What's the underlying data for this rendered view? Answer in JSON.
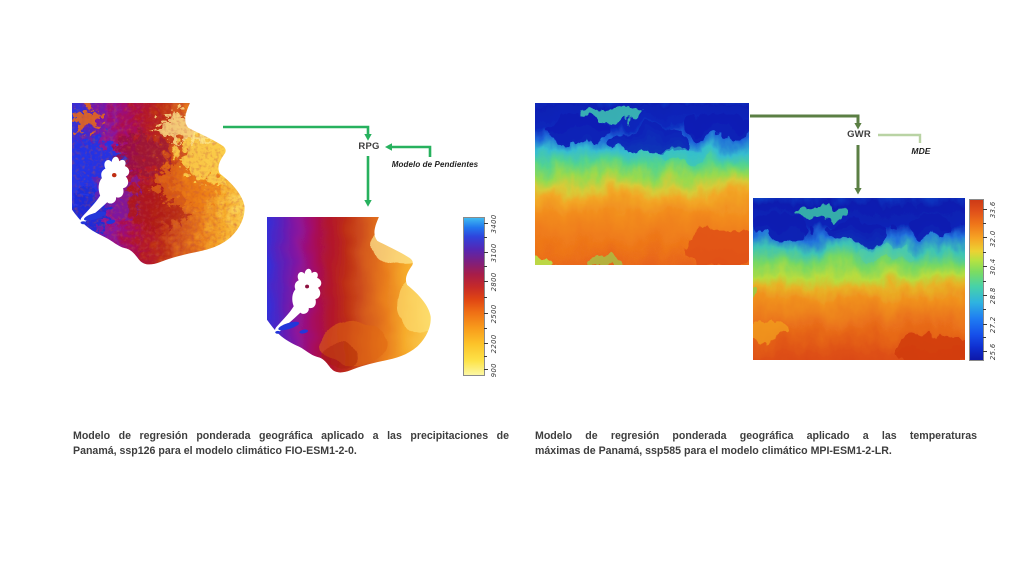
{
  "figure": {
    "background": "#ffffff",
    "accent_colors": {
      "left_connector_green": "#27b15e",
      "right_connector_green": "#5b7f44",
      "right_connector_light_green": "#b9d3a4"
    },
    "left_panel": {
      "node_label": "RPG",
      "input_label": "Modelo de Pendientes",
      "colorbar": {
        "labels": [
          "900",
          "2200",
          "2500",
          "2800",
          "3100",
          "3400"
        ],
        "positions_pct": [
          3,
          20,
          39,
          59,
          78,
          96
        ]
      },
      "caption_lines": [
        "Modelo de regresión ponderada geográfica aplicado a las precipitaciones de",
        "Panamá, ssp126 para el modelo climático FIO-ESM1-2-0."
      ]
    },
    "right_panel": {
      "node_label": "GWR",
      "input_label": "MDE",
      "colorbar": {
        "labels": [
          "25.6",
          "27.2",
          "28.8",
          "30.4",
          "32.0",
          "33.6"
        ],
        "positions_pct": [
          5,
          22,
          40,
          58,
          76,
          94
        ]
      },
      "caption_lines": [
        "Modelo de regresión ponderada geográfica aplicado a las temperaturas",
        "máximas de Panamá, ssp585 para el modelo climático MPI-ESM1-2-LR."
      ]
    }
  }
}
